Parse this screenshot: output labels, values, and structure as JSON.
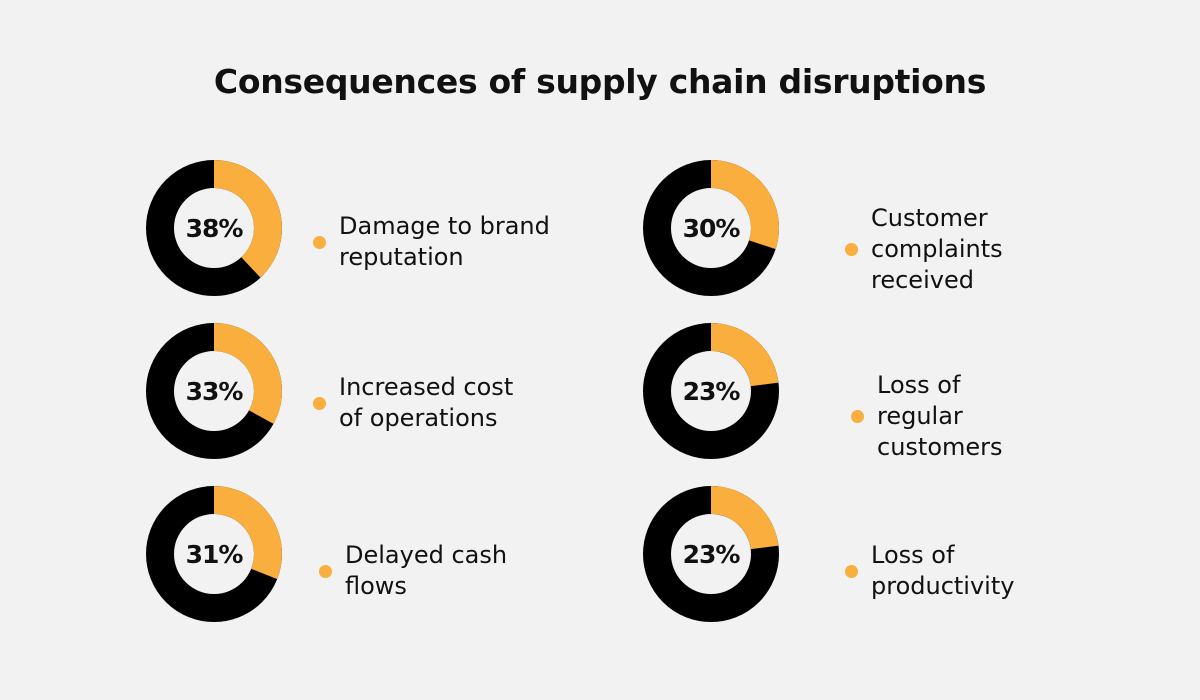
{
  "chart_data": {
    "type": "pie",
    "variant": "donut",
    "title": "Consequences of supply chain disruptions",
    "colors": {
      "highlight": "#f9ae3d",
      "remainder": "#000000",
      "background": "#f2f2f2"
    },
    "items": [
      {
        "value": 38,
        "label_text": "38%",
        "category": "Damage to brand\nreputation"
      },
      {
        "value": 30,
        "label_text": "30%",
        "category": "Customer\ncomplaints\nreceived"
      },
      {
        "value": 33,
        "label_text": "33%",
        "category": "Increased cost\nof operations"
      },
      {
        "value": 23,
        "label_text": "23%",
        "category": "Loss of\nregular\ncustomers"
      },
      {
        "value": 31,
        "label_text": "31%",
        "category": "Delayed cash\nflows"
      },
      {
        "value": 23,
        "label_text": "23%",
        "category": "Loss of\nproductivity"
      }
    ]
  }
}
